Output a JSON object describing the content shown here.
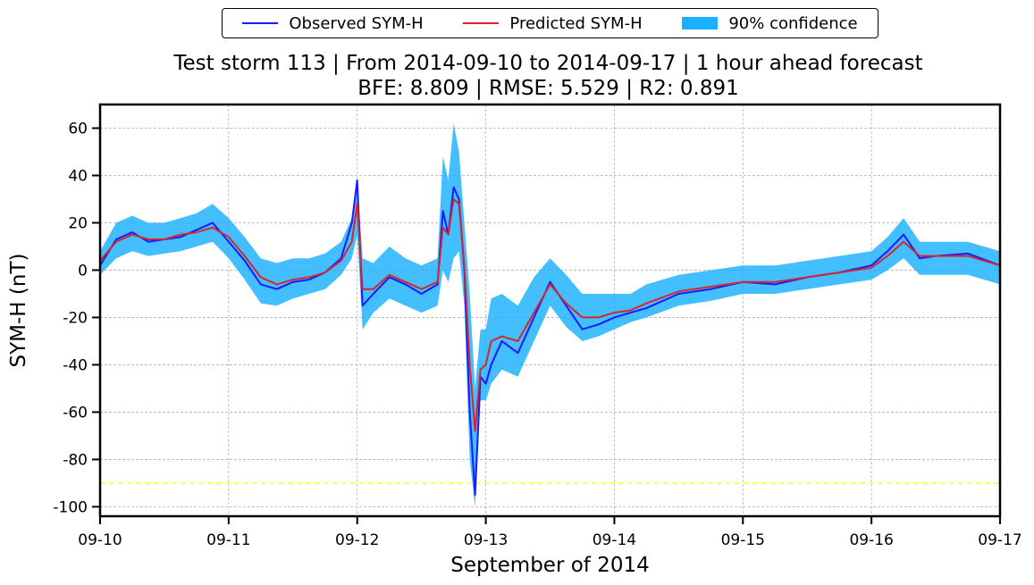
{
  "chart_data": {
    "type": "line",
    "title": "Test storm 113 | From 2014-09-10 to 2014-09-17 | 1 hour ahead forecast",
    "subtitle": "BFE: 8.809 | RMSE: 5.529 | R2: 0.891",
    "xlabel": "September of 2014",
    "ylabel": "SYM-H (nT)",
    "xlim": [
      "2014-09-10",
      "2014-09-17"
    ],
    "ylim": [
      -104,
      70
    ],
    "x_ticks": [
      "09-10",
      "09-11",
      "09-12",
      "09-13",
      "09-14",
      "09-15",
      "09-16",
      "09-17"
    ],
    "y_ticks": [
      60,
      40,
      20,
      0,
      -20,
      -40,
      -60,
      -80,
      -100
    ],
    "grid": true,
    "legend_position": "top-center outside",
    "threshold_line": {
      "y": -90,
      "color": "#ffff33",
      "style": "dashed"
    },
    "x": [
      "2014-09-10 00:00",
      "2014-09-10 03:00",
      "2014-09-10 06:00",
      "2014-09-10 09:00",
      "2014-09-10 12:00",
      "2014-09-10 15:00",
      "2014-09-10 18:00",
      "2014-09-10 21:00",
      "2014-09-11 00:00",
      "2014-09-11 03:00",
      "2014-09-11 06:00",
      "2014-09-11 09:00",
      "2014-09-11 12:00",
      "2014-09-11 15:00",
      "2014-09-11 18:00",
      "2014-09-11 21:00",
      "2014-09-11 23:00",
      "2014-09-12 00:00",
      "2014-09-12 01:00",
      "2014-09-12 03:00",
      "2014-09-12 06:00",
      "2014-09-12 09:00",
      "2014-09-12 12:00",
      "2014-09-12 15:00",
      "2014-09-12 16:00",
      "2014-09-12 17:00",
      "2014-09-12 18:00",
      "2014-09-12 19:00",
      "2014-09-12 20:00",
      "2014-09-12 21:00",
      "2014-09-12 22:00",
      "2014-09-12 23:00",
      "2014-09-13 00:00",
      "2014-09-13 01:00",
      "2014-09-13 03:00",
      "2014-09-13 06:00",
      "2014-09-13 09:00",
      "2014-09-13 12:00",
      "2014-09-13 15:00",
      "2014-09-13 18:00",
      "2014-09-13 21:00",
      "2014-09-14 00:00",
      "2014-09-14 03:00",
      "2014-09-14 06:00",
      "2014-09-14 12:00",
      "2014-09-14 18:00",
      "2014-09-15 00:00",
      "2014-09-15 06:00",
      "2014-09-15 12:00",
      "2014-09-15 18:00",
      "2014-09-16 00:00",
      "2014-09-16 03:00",
      "2014-09-16 06:00",
      "2014-09-16 09:00",
      "2014-09-16 12:00",
      "2014-09-16 18:00",
      "2014-09-17 00:00"
    ],
    "series": [
      {
        "name": "Observed SYM-H",
        "color": "#1a1aff",
        "values": [
          2,
          13,
          16,
          12,
          13,
          14,
          17,
          20,
          12,
          4,
          -6,
          -8,
          -5,
          -4,
          -1,
          5,
          20,
          38,
          -15,
          -10,
          -3,
          -6,
          -10,
          -6,
          25,
          15,
          35,
          30,
          0,
          -60,
          -95,
          -45,
          -48,
          -40,
          -30,
          -35,
          -20,
          -5,
          -15,
          -25,
          -23,
          -20,
          -18,
          -16,
          -10,
          -8,
          -5,
          -6,
          -3,
          -1,
          2,
          8,
          15,
          5,
          6,
          7,
          2
        ],
        "style": "solid"
      },
      {
        "name": "Predicted SYM-H",
        "color": "#d62728",
        "values": [
          4,
          12,
          15,
          13,
          13,
          15,
          16,
          18,
          14,
          6,
          -3,
          -6,
          -4,
          -3,
          -1,
          4,
          12,
          28,
          -8,
          -8,
          -2,
          -5,
          -8,
          -5,
          18,
          15,
          30,
          28,
          2,
          -40,
          -68,
          -42,
          -40,
          -30,
          -28,
          -30,
          -18,
          -6,
          -14,
          -20,
          -20,
          -18,
          -17,
          -14,
          -9,
          -7,
          -5,
          -5,
          -3,
          -1,
          1,
          6,
          12,
          6,
          6,
          6,
          2
        ],
        "style": "solid"
      }
    ],
    "band": {
      "name": "90% confidence",
      "color": "#1ab0ff",
      "lower": [
        -2,
        5,
        8,
        6,
        7,
        8,
        10,
        12,
        5,
        -4,
        -14,
        -15,
        -12,
        -10,
        -8,
        -2,
        5,
        15,
        -25,
        -18,
        -12,
        -15,
        -18,
        -15,
        0,
        -5,
        5,
        8,
        -15,
        -80,
        -100,
        -55,
        -55,
        -48,
        -42,
        -45,
        -30,
        -15,
        -24,
        -30,
        -28,
        -25,
        -22,
        -20,
        -15,
        -13,
        -10,
        -10,
        -8,
        -6,
        -4,
        0,
        5,
        -2,
        -2,
        -2,
        -6
      ],
      "upper": [
        8,
        20,
        23,
        20,
        20,
        22,
        24,
        28,
        22,
        14,
        5,
        3,
        5,
        5,
        7,
        12,
        22,
        38,
        5,
        3,
        10,
        5,
        2,
        5,
        48,
        38,
        62,
        50,
        20,
        -10,
        -50,
        -25,
        -25,
        -12,
        -10,
        -15,
        -3,
        5,
        -2,
        -10,
        -10,
        -10,
        -10,
        -6,
        -2,
        0,
        2,
        2,
        4,
        6,
        8,
        14,
        22,
        12,
        12,
        12,
        8
      ]
    }
  }
}
